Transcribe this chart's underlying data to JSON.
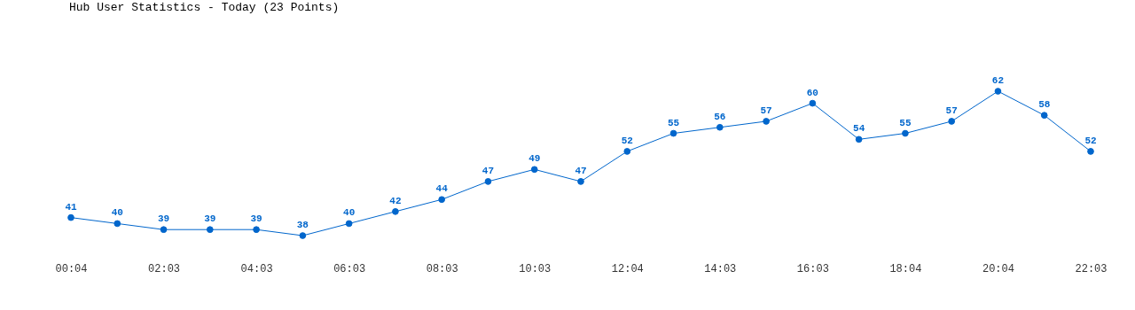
{
  "chart_data": {
    "type": "line",
    "title": "Hub User Statistics - Today (23 Points)",
    "categories": [
      "00:04",
      null,
      "02:03",
      null,
      "04:03",
      null,
      "06:03",
      null,
      "08:03",
      null,
      "10:03",
      null,
      "12:04",
      null,
      "14:03",
      null,
      "16:03",
      null,
      "18:04",
      null,
      "20:04",
      null,
      "22:03"
    ],
    "series": [
      {
        "color": "#0066cc",
        "values": [
          41,
          40,
          39,
          39,
          39,
          38,
          40,
          42,
          44,
          47,
          49,
          47,
          52,
          55,
          56,
          57,
          60,
          54,
          55,
          57,
          62,
          58,
          52
        ]
      }
    ],
    "data_labels": true,
    "marker": "circle",
    "grid": false
  }
}
